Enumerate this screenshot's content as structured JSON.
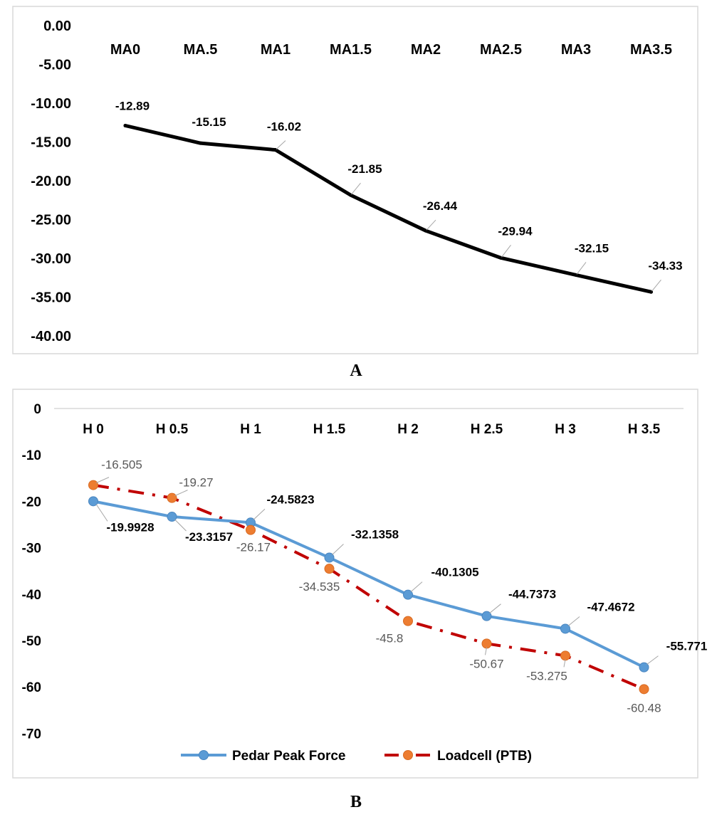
{
  "chart_data": [
    {
      "type": "line",
      "categories": [
        "MA0",
        "MA.5",
        "MA1",
        "MA1.5",
        "MA2",
        "MA2.5",
        "MA3",
        "MA3.5"
      ],
      "values": [
        -12.89,
        -15.15,
        -16.02,
        -21.85,
        -26.44,
        -29.94,
        -32.15,
        -34.33
      ],
      "value_labels": [
        "-12.89",
        "-15.15",
        "-16.02",
        "-21.85",
        "-26.44",
        "-29.94",
        "-32.15",
        "-34.33"
      ],
      "y_tick_labels": [
        "0.00",
        "-5.00",
        "-10.00",
        "-15.00",
        "-20.00",
        "-25.00",
        "-30.00",
        "-35.00",
        "-40.00"
      ],
      "ylim": [
        -40,
        0
      ],
      "x_axis_position": "top",
      "grid": false,
      "legend": "none",
      "line_color": "#000000",
      "caption": "A"
    },
    {
      "type": "line",
      "categories": [
        "H 0",
        "H 0.5",
        "H 1",
        "H 1.5",
        "H 2",
        "H 2.5",
        "H 3",
        "H 3.5"
      ],
      "series": [
        {
          "name": "Pedar Peak Force",
          "values": [
            -19.9928,
            -23.3157,
            -24.5823,
            -32.1358,
            -40.1305,
            -44.7373,
            -47.4672,
            -55.771
          ],
          "value_labels": [
            "-19.9928",
            "-23.3157",
            "-24.5823",
            "-32.1358",
            "-40.1305",
            "-44.7373",
            "-47.4672",
            "-55.771"
          ],
          "line_color": "#5B9BD5",
          "marker_color": "#5B9BD5",
          "line_style": "solid"
        },
        {
          "name": "Loadcell (PTB)",
          "values": [
            -16.505,
            -19.27,
            -26.17,
            -34.535,
            -45.8,
            -50.67,
            -53.275,
            -60.48
          ],
          "value_labels": [
            "-16.505",
            "-19.27",
            "-26.17",
            "-34.535",
            "-45.8",
            "-50.67",
            "-53.275",
            "-60.48"
          ],
          "line_color": "#C00000",
          "marker_color": "#ED7D31",
          "line_style": "dash-dot"
        }
      ],
      "y_tick_labels": [
        "0",
        "-10",
        "-20",
        "-30",
        "-40",
        "-50",
        "-60",
        "-70"
      ],
      "ylim": [
        -70,
        0
      ],
      "x_axis_position": "top",
      "grid": false,
      "legend": "bottom",
      "caption": "B"
    }
  ]
}
